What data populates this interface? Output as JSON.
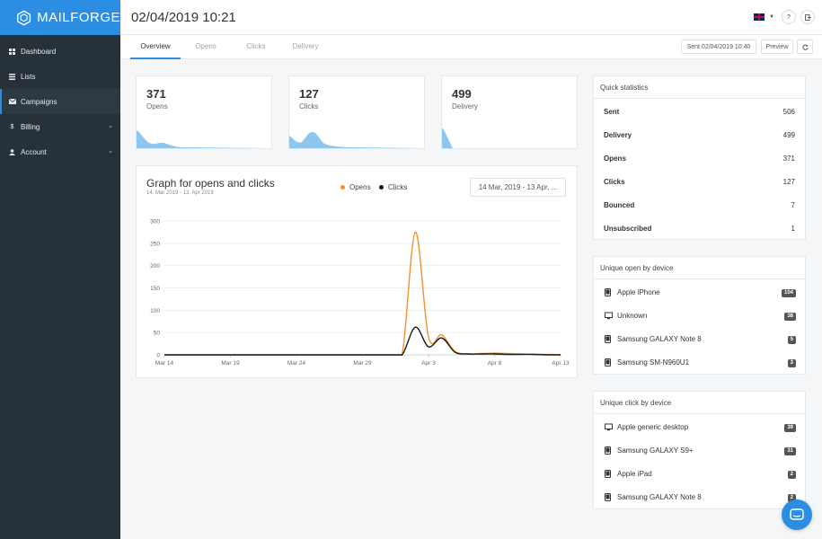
{
  "brand": {
    "name": "MAILFORGE"
  },
  "sidebar": {
    "items": [
      {
        "label": "Dashboard",
        "icon": "grid-icon"
      },
      {
        "label": "Lists",
        "icon": "list-icon"
      },
      {
        "label": "Campaigns",
        "icon": "envelope-icon"
      },
      {
        "label": "Billing",
        "icon": "dollar-icon"
      },
      {
        "label": "Account",
        "icon": "user-icon"
      }
    ]
  },
  "header": {
    "title": "02/04/2019 10:21",
    "help_label": "?",
    "language_icon": "uk-flag-icon"
  },
  "tabs": [
    {
      "label": "Overview"
    },
    {
      "label": "Opens"
    },
    {
      "label": "Clicks"
    },
    {
      "label": "Delivery"
    }
  ],
  "toolbar": {
    "sent_label": "Sent 02/04/2019 10:40",
    "preview_label": "Preview",
    "refresh_icon": "refresh-icon"
  },
  "stats": [
    {
      "value": "371",
      "label": "Opens"
    },
    {
      "value": "127",
      "label": "Clicks"
    },
    {
      "value": "499",
      "label": "Delivery"
    }
  ],
  "graph": {
    "title": "Graph for opens and clicks",
    "subtitle": "14. Mar 2019 - 13. Apr 2019",
    "legend": [
      {
        "name": "Opens",
        "color": "#f0922e"
      },
      {
        "name": "Clicks",
        "color": "#1a1a1a"
      }
    ],
    "date_range": "14 Mar, 2019 - 13 Apr, ..."
  },
  "chart_data": {
    "type": "line",
    "x": [
      "Mar 14",
      "Mar 15",
      "Mar 16",
      "Mar 17",
      "Mar 18",
      "Mar 19",
      "Mar 20",
      "Mar 21",
      "Mar 22",
      "Mar 23",
      "Mar 24",
      "Mar 25",
      "Mar 26",
      "Mar 27",
      "Mar 28",
      "Mar 29",
      "Mar 30",
      "Mar 31",
      "Apr 1",
      "Apr 2",
      "Apr 3",
      "Apr 4",
      "Apr 5",
      "Apr 6",
      "Apr 7",
      "Apr 8",
      "Apr 9",
      "Apr 10",
      "Apr 11",
      "Apr 12",
      "Apr 13"
    ],
    "xticks": [
      "Mar 14",
      "Mar 19",
      "Mar 24",
      "Mar 29",
      "Apr 3",
      "Apr 8",
      "Apr 13"
    ],
    "series": [
      {
        "name": "Opens",
        "color": "#f0922e",
        "values": [
          0,
          0,
          0,
          0,
          0,
          0,
          0,
          0,
          0,
          0,
          0,
          0,
          0,
          0,
          0,
          0,
          0,
          0,
          0,
          275,
          40,
          45,
          8,
          2,
          3,
          4,
          3,
          2,
          1,
          1,
          0
        ]
      },
      {
        "name": "Clicks",
        "color": "#1a1a1a",
        "values": [
          0,
          0,
          0,
          0,
          0,
          0,
          0,
          0,
          0,
          0,
          0,
          0,
          0,
          0,
          0,
          0,
          0,
          0,
          0,
          62,
          18,
          38,
          6,
          2,
          2,
          2,
          1,
          1,
          1,
          0,
          0
        ]
      }
    ],
    "ylim": [
      0,
      300
    ],
    "yticks": [
      0,
      50,
      100,
      150,
      200,
      250,
      300
    ],
    "grid": true,
    "legend_position": "top"
  },
  "quick_stats": {
    "title": "Quick statistics",
    "rows": [
      {
        "label": "Sent",
        "value": "506"
      },
      {
        "label": "Delivery",
        "value": "499"
      },
      {
        "label": "Opens",
        "value": "371"
      },
      {
        "label": "Clicks",
        "value": "127"
      },
      {
        "label": "Bounced",
        "value": "7"
      },
      {
        "label": "Unsubscribed",
        "value": "1"
      }
    ]
  },
  "open_by_device": {
    "title": "Unique open by device",
    "rows": [
      {
        "name": "Apple iPhone",
        "count": "104",
        "icon": "phone-icon"
      },
      {
        "name": "Unknown",
        "count": "38",
        "icon": "monitor-icon"
      },
      {
        "name": "Samsung GALAXY Note 8",
        "count": "5",
        "icon": "phone-icon"
      },
      {
        "name": "Samsung SM-N960U1",
        "count": "3",
        "icon": "phone-icon"
      }
    ]
  },
  "click_by_device": {
    "title": "Unique click by device",
    "rows": [
      {
        "name": "Apple generic desktop",
        "count": "39",
        "icon": "monitor-icon"
      },
      {
        "name": "Samsung GALAXY S9+",
        "count": "31",
        "icon": "phone-icon"
      },
      {
        "name": "Apple iPad",
        "count": "2",
        "icon": "phone-icon"
      },
      {
        "name": "Samsung GALAXY Note 8",
        "count": "2",
        "icon": "phone-icon"
      }
    ]
  },
  "colors": {
    "accent": "#2c8ee3",
    "sidebar": "#27313a",
    "opens": "#f0922e",
    "clicks": "#1a1a1a",
    "spark": "#8ec6ef"
  }
}
